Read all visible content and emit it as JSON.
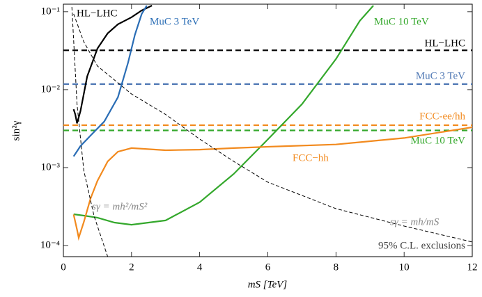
{
  "chart_data": {
    "type": "line",
    "xlabel": "mS  [TeV]",
    "ylabel": "sin²γ",
    "xlim": [
      0,
      12
    ],
    "ylim": [
      7.2e-05,
      0.125
    ],
    "log_y": true,
    "xticks": [
      0,
      2,
      4,
      6,
      8,
      10,
      12
    ],
    "yticks": [
      {
        "value": 0.0001,
        "label": "10⁻⁴"
      },
      {
        "value": 0.001,
        "label": "10⁻³"
      },
      {
        "value": 0.01,
        "label": "10⁻²"
      },
      {
        "value": 0.1,
        "label": "10⁻¹"
      }
    ],
    "series": [
      {
        "name": "HL−LHC",
        "color": "#000000",
        "dash": false,
        "x": [
          0.3,
          0.35,
          0.4,
          0.5,
          0.7,
          1.0,
          1.3,
          1.6,
          2.0,
          2.3,
          2.6
        ],
        "values": [
          0.0056,
          0.0048,
          0.0037,
          0.0053,
          0.0148,
          0.0337,
          0.0528,
          0.069,
          0.085,
          0.104,
          0.12
        ]
      },
      {
        "name": "MuC 3 TeV",
        "color": "#2a6db5",
        "dash": false,
        "x": [
          0.3,
          0.5,
          0.8,
          1.2,
          1.6,
          1.9,
          2.1,
          2.3,
          2.45
        ],
        "values": [
          0.00139,
          0.00189,
          0.00258,
          0.0039,
          0.008,
          0.0223,
          0.0507,
          0.094,
          0.12
        ]
      },
      {
        "name": "MuC 10 TeV",
        "color": "#34a82c",
        "dash": false,
        "x": [
          0.3,
          0.6,
          1.0,
          1.5,
          2.0,
          3.0,
          4.0,
          5.0,
          6.0,
          7.0,
          8.0,
          8.7,
          9.1
        ],
        "values": [
          0.000252,
          0.000242,
          0.000228,
          0.000197,
          0.000185,
          0.00021,
          0.00036,
          0.00083,
          0.0023,
          0.0065,
          0.0247,
          0.0765,
          0.12
        ]
      },
      {
        "name": "FCC−hh",
        "color": "#f28a1e",
        "dash": false,
        "x": [
          0.3,
          0.4,
          0.45,
          0.6,
          0.8,
          1.0,
          1.3,
          1.6,
          2.0,
          3.0,
          4.0,
          5.0,
          6.0,
          8.0,
          10.0,
          12.0
        ],
        "values": [
          0.00025,
          0.00016,
          0.000126,
          0.0002,
          0.000404,
          0.000676,
          0.0012,
          0.0016,
          0.00178,
          0.00167,
          0.0017,
          0.00178,
          0.00185,
          0.00198,
          0.0024,
          0.0033
        ]
      },
      {
        "name": "sγ = mh²/mS²",
        "color": "#000000",
        "dash": true,
        "x": [
          0.25,
          0.4,
          0.6,
          0.9,
          1.3
        ],
        "values": [
          0.115,
          0.0065,
          0.00092,
          0.00024,
          7.2e-05
        ]
      },
      {
        "name": "sγ = mh/mS",
        "color": "#000000",
        "dash": true,
        "x": [
          0.3,
          0.6,
          1.0,
          2.0,
          3.0,
          4.0,
          5.0,
          6.0,
          8.0,
          10.0,
          12.0
        ],
        "values": [
          0.094,
          0.041,
          0.0201,
          0.0088,
          0.0048,
          0.00232,
          0.0012,
          0.00065,
          0.000297,
          0.000178,
          0.000111
        ]
      }
    ],
    "hlines": [
      {
        "name": "HL−LHC",
        "value": 0.032,
        "color": "#000000"
      },
      {
        "name": "MuC 3 TeV",
        "value": 0.0118,
        "color": "#4f78b4"
      },
      {
        "name": "FCC-ee/hh",
        "value": 0.0035,
        "color": "#f28a1e"
      },
      {
        "name": "MuC 10 TeV",
        "value": 0.003,
        "color": "#34a82c"
      }
    ],
    "annotation": "95% C.L. exclusions"
  }
}
